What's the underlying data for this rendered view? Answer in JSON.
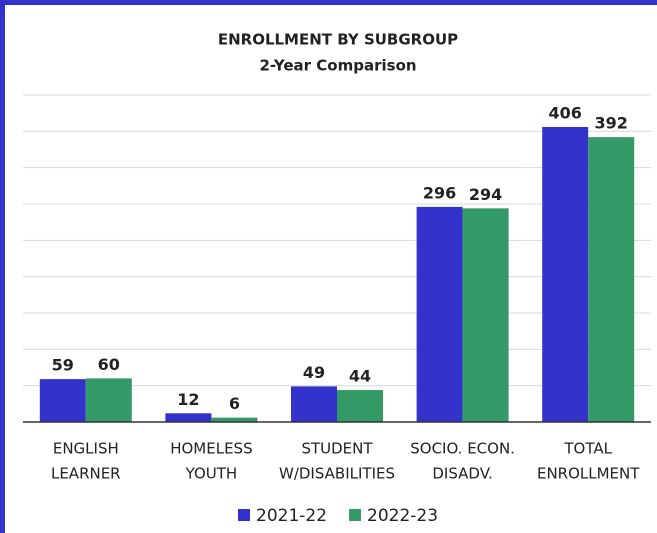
{
  "chart_data": {
    "type": "bar",
    "title": "ENROLLMENT BY SUBGROUP",
    "subtitle": "2-Year Comparison",
    "categories": [
      [
        "ENGLISH",
        "LEARNER"
      ],
      [
        "HOMELESS",
        "YOUTH"
      ],
      [
        "STUDENT",
        "W/DISABILITIES"
      ],
      [
        "SOCIO. ECON.",
        "DISADV."
      ],
      [
        "TOTAL",
        "ENROLLMENT"
      ]
    ],
    "series": [
      {
        "name": "2021-22",
        "color": "#3333cc",
        "values": [
          59,
          12,
          49,
          296,
          406
        ]
      },
      {
        "name": "2022-23",
        "color": "#339966",
        "values": [
          60,
          6,
          44,
          294,
          392
        ]
      }
    ],
    "ylim": [
      0,
      450
    ],
    "yticks": [
      0,
      50,
      100,
      150,
      200,
      250,
      300,
      350,
      400,
      450
    ],
    "grid": true
  }
}
